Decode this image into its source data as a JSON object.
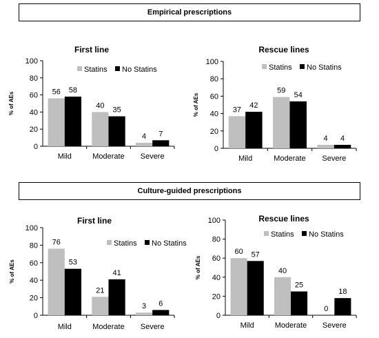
{
  "sections": {
    "empirical": "Empirical prescriptions",
    "culture": "Culture-guided prescriptions"
  },
  "colors": {
    "statins": "#bfbfbf",
    "no_statins": "#000000"
  },
  "chart_data": [
    {
      "type": "bar",
      "section": "Empirical prescriptions",
      "title": "First line",
      "ylabel": "% of AEs",
      "xlabel": "",
      "ylim": [
        0,
        100
      ],
      "yticks": [
        0,
        20,
        40,
        60,
        80,
        100
      ],
      "categories": [
        "Mild",
        "Moderate",
        "Severe"
      ],
      "series": [
        {
          "name": "Statins",
          "values": [
            56,
            40,
            4
          ]
        },
        {
          "name": "No Statins",
          "values": [
            58,
            35,
            7
          ]
        }
      ],
      "grid": false,
      "legend": "top-right"
    },
    {
      "type": "bar",
      "section": "Empirical prescriptions",
      "title": "Rescue lines",
      "ylabel": "% of AEs",
      "xlabel": "",
      "ylim": [
        0,
        100
      ],
      "yticks": [
        0,
        20,
        40,
        60,
        80,
        100
      ],
      "categories": [
        "Mild",
        "Moderate",
        "Severe"
      ],
      "series": [
        {
          "name": "Statins",
          "values": [
            37,
            59,
            4
          ]
        },
        {
          "name": "No Statins",
          "values": [
            42,
            54,
            4
          ]
        }
      ],
      "grid": false,
      "legend": "top-right"
    },
    {
      "type": "bar",
      "section": "Culture-guided prescriptions",
      "title": "First line",
      "ylabel": "% of AEs",
      "xlabel": "",
      "ylim": [
        0,
        100
      ],
      "yticks": [
        0,
        20,
        40,
        60,
        80,
        100
      ],
      "categories": [
        "Mild",
        "Moderate",
        "Severe"
      ],
      "series": [
        {
          "name": "Statins",
          "values": [
            76,
            21,
            3
          ]
        },
        {
          "name": "No Statins",
          "values": [
            53,
            41,
            6
          ]
        }
      ],
      "grid": false,
      "legend": "middle-right"
    },
    {
      "type": "bar",
      "section": "Culture-guided prescriptions",
      "title": "Rescue lines",
      "ylabel": "% of AEs",
      "xlabel": "",
      "ylim": [
        0,
        100
      ],
      "yticks": [
        0,
        20,
        40,
        60,
        80,
        100
      ],
      "categories": [
        "Mild",
        "Moderate",
        "Severe"
      ],
      "series": [
        {
          "name": "Statins",
          "values": [
            60,
            40,
            0
          ]
        },
        {
          "name": "No Statins",
          "values": [
            57,
            25,
            18
          ]
        }
      ],
      "grid": false,
      "legend": "top-right"
    }
  ]
}
